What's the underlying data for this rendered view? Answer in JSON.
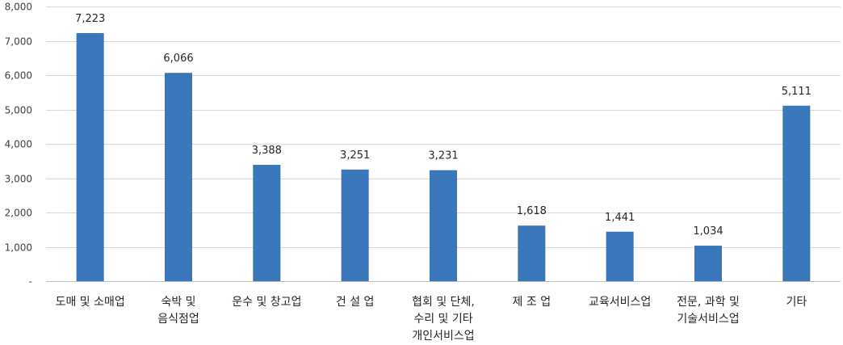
{
  "chart_data": {
    "type": "bar",
    "title": "",
    "xlabel": "",
    "ylabel": "",
    "ylim": [
      0,
      8000
    ],
    "yticks": [
      0,
      1000,
      2000,
      3000,
      4000,
      5000,
      6000,
      7000,
      8000
    ],
    "ytick_labels": [
      "-",
      "1,000",
      "2,000",
      "3,000",
      "4,000",
      "5,000",
      "6,000",
      "7,000",
      "8,000"
    ],
    "grid": true,
    "bar_color": "#3A76BA",
    "categories": [
      [
        "도매 및 소매업"
      ],
      [
        "숙박 및",
        "음식점업"
      ],
      [
        "운수 및 창고업"
      ],
      [
        "건 설 업"
      ],
      [
        "협회 및 단체,",
        "수리 및 기타",
        "개인서비스업"
      ],
      [
        "제 조 업"
      ],
      [
        "교육서비스업"
      ],
      [
        "전문, 과학 및",
        "기술서비스업"
      ],
      [
        "기타"
      ]
    ],
    "values": [
      7223,
      6066,
      3388,
      3251,
      3231,
      1618,
      1441,
      1034,
      5111
    ],
    "data_labels": [
      "7,223",
      "6,066",
      "3,388",
      "3,251",
      "3,231",
      "1,618",
      "1,441",
      "1,034",
      "5,111"
    ]
  }
}
